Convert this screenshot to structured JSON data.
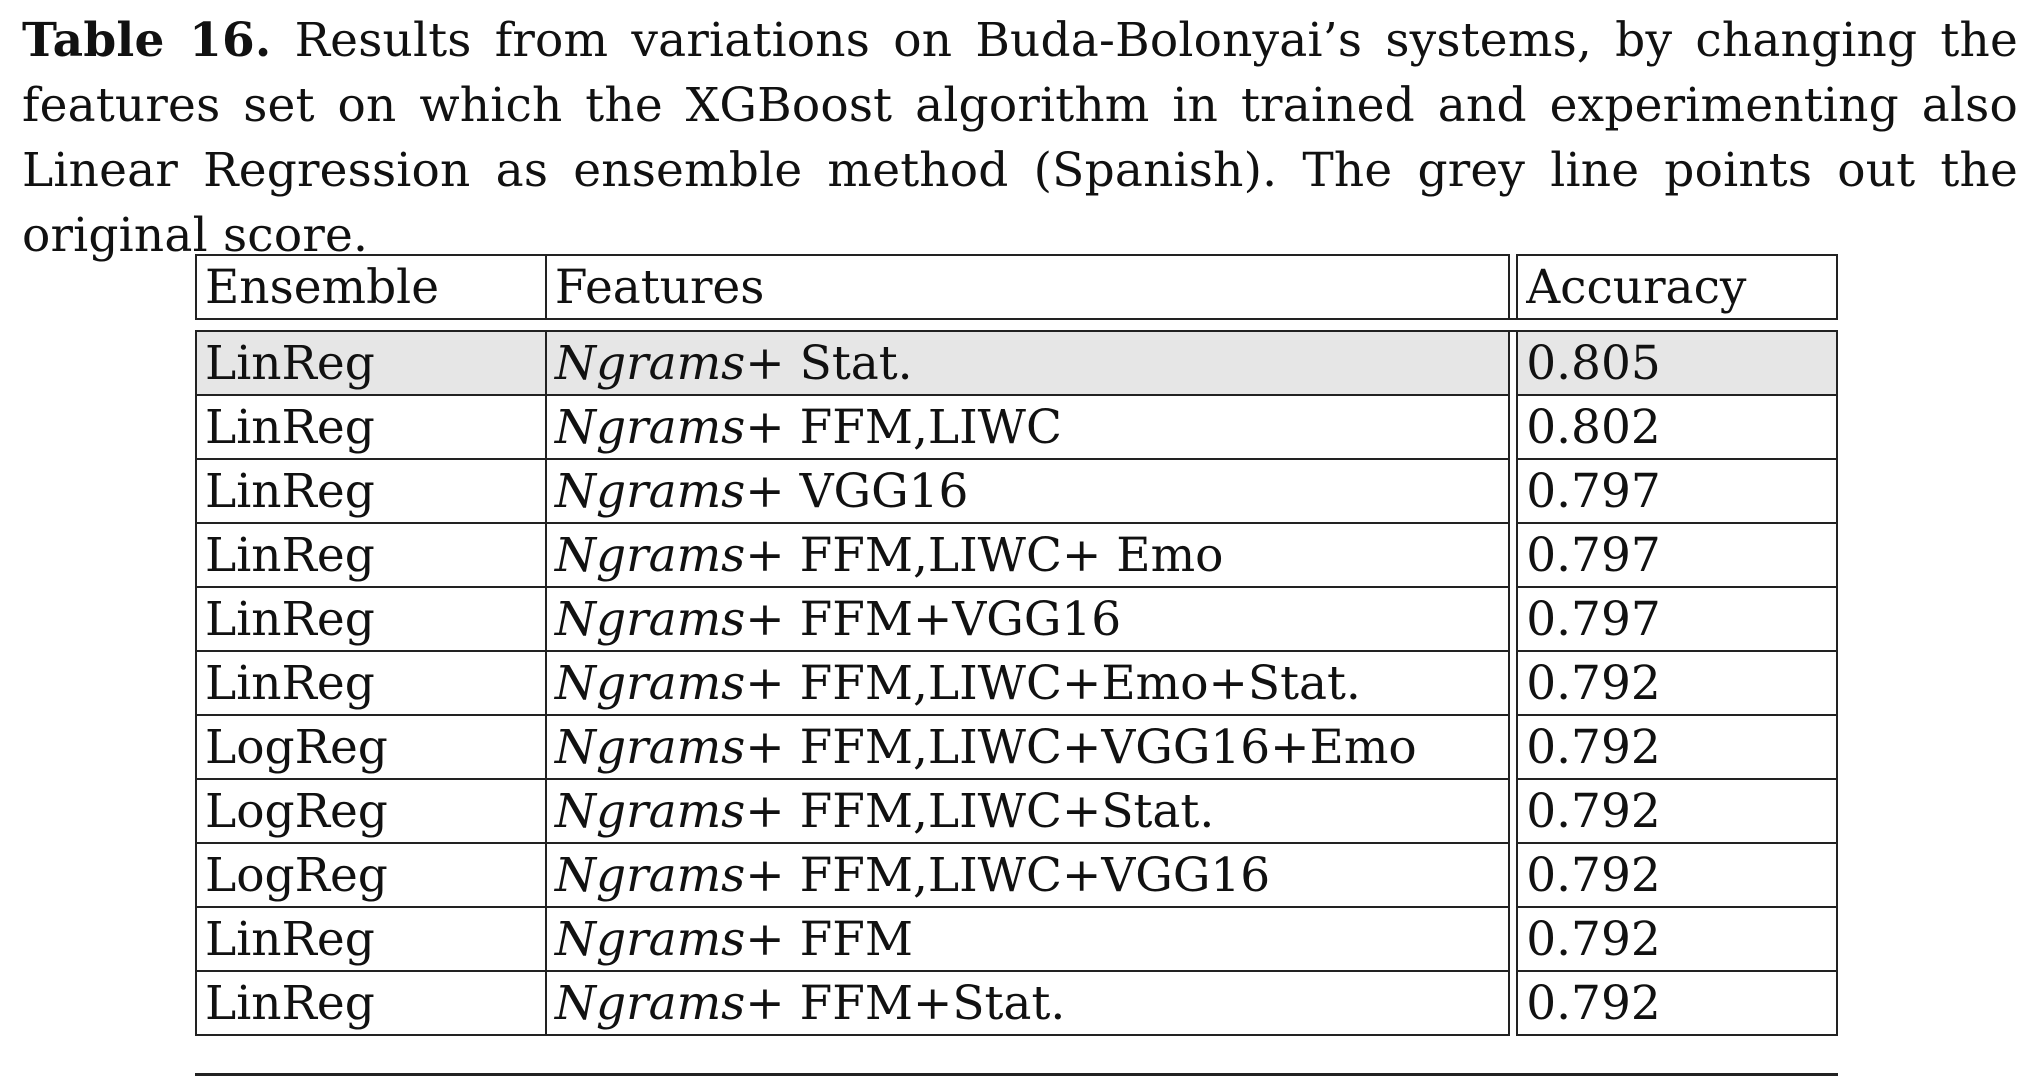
{
  "caption": {
    "label": "Table 16.",
    "text": "Results from variations on Buda-Bolonyai’s systems, by changing the features set on which the XGBoost algorithm in trained and experimenting also Linear Regression as ensemble method (Spanish). The grey line points out the original score."
  },
  "table": {
    "headers": {
      "ensemble": "Ensemble",
      "features": "Features",
      "accuracy": "Accuracy"
    },
    "feature_prefix": "Ngrams",
    "rows": [
      {
        "ensemble": "LinReg",
        "features_suffix": "+ Stat.",
        "accuracy": "0.805",
        "highlight": true
      },
      {
        "ensemble": "LinReg",
        "features_suffix": "+ FFM,LIWC",
        "accuracy": "0.802",
        "highlight": false
      },
      {
        "ensemble": "LinReg",
        "features_suffix": "+ VGG16",
        "accuracy": "0.797",
        "highlight": false
      },
      {
        "ensemble": "LinReg",
        "features_suffix": "+ FFM,LIWC+ Emo",
        "accuracy": "0.797",
        "highlight": false
      },
      {
        "ensemble": "LinReg",
        "features_suffix": "+ FFM+VGG16",
        "accuracy": "0.797",
        "highlight": false
      },
      {
        "ensemble": "LinReg",
        "features_suffix": "+ FFM,LIWC+Emo+Stat.",
        "accuracy": "0.792",
        "highlight": false
      },
      {
        "ensemble": "LogReg",
        "features_suffix": "+ FFM,LIWC+VGG16+Emo",
        "accuracy": "0.792",
        "highlight": false
      },
      {
        "ensemble": "LogReg",
        "features_suffix": "+ FFM,LIWC+Stat.",
        "accuracy": "0.792",
        "highlight": false
      },
      {
        "ensemble": "LogReg",
        "features_suffix": "+ FFM,LIWC+VGG16",
        "accuracy": "0.792",
        "highlight": false
      },
      {
        "ensemble": "LinReg",
        "features_suffix": "+ FFM",
        "accuracy": "0.792",
        "highlight": false
      },
      {
        "ensemble": "LinReg",
        "features_suffix": "+ FFM+Stat.",
        "accuracy": "0.792",
        "highlight": false
      }
    ]
  }
}
